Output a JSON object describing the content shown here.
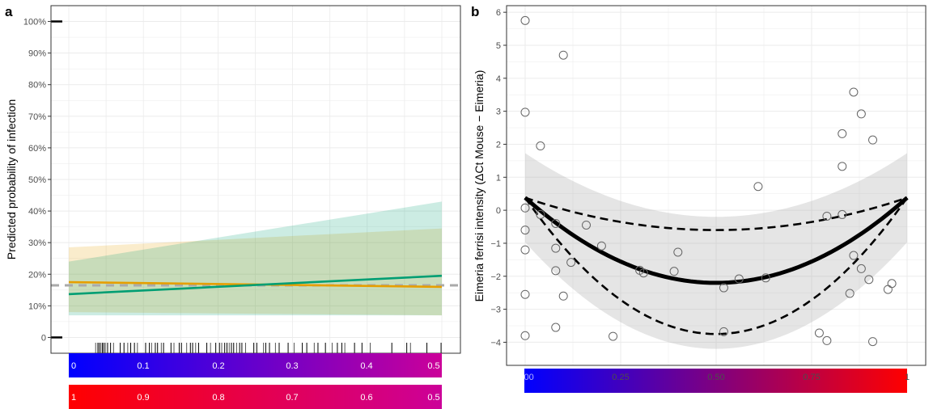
{
  "panels": {
    "a": "a",
    "b": "b"
  },
  "colors": {
    "orange": "#e69f00",
    "green": "#009e73",
    "grey_dash": "#aaaaaa",
    "grid": "#ebebeb"
  },
  "chart_data": [
    {
      "type": "line",
      "panel": "a",
      "ylabel": "Predicted probability of infection",
      "xlim": [
        0,
        0.5
      ],
      "ylim": [
        -0.05,
        1.05
      ],
      "y_ticks": [
        0,
        0.1,
        0.2,
        0.3,
        0.4,
        0.5,
        0.6,
        0.7,
        0.8,
        0.9,
        1.0
      ],
      "y_tick_labels": [
        "0",
        "10%",
        "20%",
        "30%",
        "40%",
        "50%",
        "60%",
        "70%",
        "80%",
        "90%",
        "100%"
      ],
      "reference_line": 0.165,
      "series": [
        {
          "color": "#e69f00",
          "x": [
            0,
            0.5
          ],
          "y": [
            0.175,
            0.16
          ],
          "lower": [
            0.08,
            0.07
          ],
          "upper": [
            0.285,
            0.345
          ]
        },
        {
          "color": "#009e73",
          "x": [
            0,
            0.5
          ],
          "y": [
            0.137,
            0.195
          ],
          "lower": [
            0.07,
            0.07
          ],
          "upper": [
            0.24,
            0.43
          ]
        }
      ],
      "rug_x": [
        0.036,
        0.039,
        0.041,
        0.043,
        0.045,
        0.047,
        0.049,
        0.052,
        0.056,
        0.06,
        0.069,
        0.074,
        0.079,
        0.083,
        0.088,
        0.092,
        0.103,
        0.108,
        0.111,
        0.116,
        0.119,
        0.124,
        0.127,
        0.137,
        0.141,
        0.148,
        0.151,
        0.158,
        0.163,
        0.166,
        0.17,
        0.174,
        0.185,
        0.19,
        0.197,
        0.202,
        0.205,
        0.209,
        0.212,
        0.215,
        0.218,
        0.221,
        0.225,
        0.229,
        0.232,
        0.237,
        0.248,
        0.252,
        0.261,
        0.264,
        0.269,
        0.277,
        0.282,
        0.294,
        0.302,
        0.313,
        0.319,
        0.329,
        0.334,
        0.344,
        0.353,
        0.36,
        0.366,
        0.37,
        0.383,
        0.393,
        0.404,
        0.433,
        0.453,
        0.458,
        0.48,
        0.499
      ],
      "colorbars": [
        {
          "from": "#0000ff",
          "to": "#cc0099",
          "labels": [
            "0",
            "0.1",
            "0.2",
            "0.3",
            "0.4",
            "0.5"
          ]
        },
        {
          "from": "#ff0000",
          "to": "#cc0099",
          "labels": [
            "1",
            "0.9",
            "0.8",
            "0.7",
            "0.6",
            "0.5"
          ]
        }
      ]
    },
    {
      "type": "scatter",
      "panel": "b",
      "ylabel": "Eimeria ferrisi intensity (ΔCt Mouse − Eimeria)",
      "xlim": [
        -0.05,
        1.05
      ],
      "ylim": [
        -4.7,
        6.2
      ],
      "y_ticks": [
        -4,
        -3,
        -2,
        -1,
        0,
        1,
        2,
        3,
        4,
        5,
        6
      ],
      "y_tick_labels": [
        "−4",
        "−3",
        "−2",
        "−1",
        "0",
        "1",
        "2",
        "3",
        "4",
        "5",
        "6"
      ],
      "x_ticks": [
        0,
        0.25,
        0.5,
        0.75,
        1
      ],
      "x_tick_labels": [
        "0.00",
        "0.25",
        "0.50",
        "0.75",
        "1"
      ],
      "points": [
        {
          "x": 0.0,
          "y": 5.75
        },
        {
          "x": 0.0,
          "y": 2.97
        },
        {
          "x": 0.0,
          "y": 0.07
        },
        {
          "x": 0.0,
          "y": -0.6
        },
        {
          "x": 0.0,
          "y": -1.2
        },
        {
          "x": 0.0,
          "y": -2.55
        },
        {
          "x": 0.0,
          "y": -3.8
        },
        {
          "x": 0.04,
          "y": 1.95
        },
        {
          "x": 0.04,
          "y": -0.13
        },
        {
          "x": 0.08,
          "y": -0.4
        },
        {
          "x": 0.08,
          "y": -1.15
        },
        {
          "x": 0.08,
          "y": -1.83
        },
        {
          "x": 0.08,
          "y": -3.55
        },
        {
          "x": 0.1,
          "y": 4.7
        },
        {
          "x": 0.1,
          "y": -2.6
        },
        {
          "x": 0.12,
          "y": -1.58
        },
        {
          "x": 0.16,
          "y": -0.45
        },
        {
          "x": 0.2,
          "y": -1.08
        },
        {
          "x": 0.23,
          "y": -3.82
        },
        {
          "x": 0.3,
          "y": -1.82
        },
        {
          "x": 0.31,
          "y": -1.9
        },
        {
          "x": 0.39,
          "y": -1.85
        },
        {
          "x": 0.4,
          "y": -1.27
        },
        {
          "x": 0.52,
          "y": -2.35
        },
        {
          "x": 0.52,
          "y": -3.68
        },
        {
          "x": 0.56,
          "y": -2.08
        },
        {
          "x": 0.61,
          "y": 0.72
        },
        {
          "x": 0.63,
          "y": -2.05
        },
        {
          "x": 0.77,
          "y": -3.72
        },
        {
          "x": 0.79,
          "y": -3.95
        },
        {
          "x": 0.79,
          "y": -0.18
        },
        {
          "x": 0.83,
          "y": 2.32
        },
        {
          "x": 0.83,
          "y": 1.33
        },
        {
          "x": 0.83,
          "y": -0.13
        },
        {
          "x": 0.85,
          "y": -2.52
        },
        {
          "x": 0.86,
          "y": 3.58
        },
        {
          "x": 0.86,
          "y": -1.37
        },
        {
          "x": 0.88,
          "y": 2.92
        },
        {
          "x": 0.88,
          "y": -1.77
        },
        {
          "x": 0.9,
          "y": -2.1
        },
        {
          "x": 0.91,
          "y": 2.13
        },
        {
          "x": 0.91,
          "y": -3.98
        },
        {
          "x": 0.95,
          "y": -2.4
        },
        {
          "x": 0.96,
          "y": -2.22
        }
      ],
      "fit": {
        "type": "quadratic",
        "end_value": 0.38,
        "center_value": -2.2,
        "band_halfwidth": 1.35,
        "band_center_halfwidth": 2.0
      },
      "dashed_curves": [
        {
          "end_value": 0.38,
          "center_value": -0.6
        },
        {
          "end_value": 0.38,
          "center_value": -3.75
        }
      ],
      "colorbar": {
        "from": "#0000ff",
        "to": "#ff0000"
      }
    }
  ]
}
